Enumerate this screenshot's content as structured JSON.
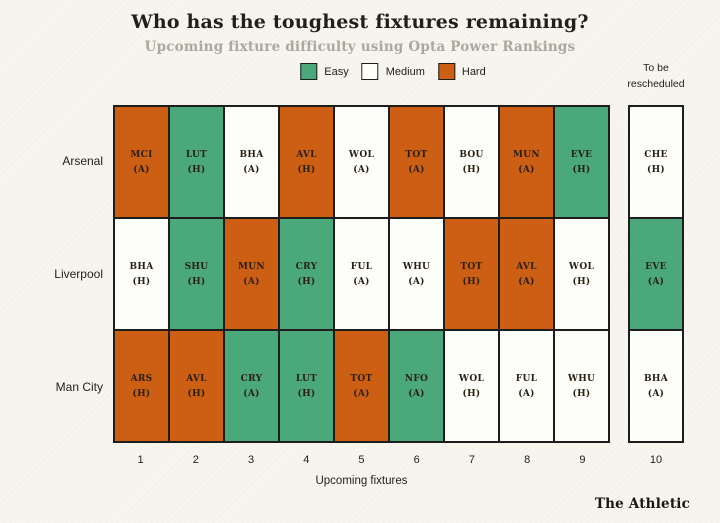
{
  "page": {
    "rescheduled_label_line1": "To be",
    "rescheduled_label_line2": "rescheduled"
  },
  "legend": {
    "items": [
      {
        "label": "Easy",
        "key": "easy"
      },
      {
        "label": "Medium",
        "key": "medium"
      },
      {
        "label": "Hard",
        "key": "hard"
      }
    ]
  },
  "colors": {
    "easy": "#4ba87b",
    "medium": "#fdfdfa",
    "hard": "#cc5f13",
    "border": "#1d1d1b",
    "background": "#f7f5ee",
    "subtitle_text": "#a8a99f",
    "title_text": "#211f1c"
  },
  "branding": "The Athletic",
  "chart_data": {
    "type": "heatmap",
    "title": "Who has the toughest fixtures remaining?",
    "subtitle": "Upcoming fixture difficulty using Opta Power Rankings",
    "xlabel": "Upcoming fixtures",
    "x_ticks": [
      "1",
      "2",
      "3",
      "4",
      "5",
      "6",
      "7",
      "8",
      "9",
      "10"
    ],
    "difficulty_scale": [
      "easy",
      "medium",
      "hard"
    ],
    "legend_entries": [
      "Easy",
      "Medium",
      "Hard"
    ],
    "rescheduled_column_label": "To be rescheduled",
    "rows": [
      {
        "team": "Arsenal",
        "fixtures": [
          {
            "opponent": "MCI",
            "venue": "A",
            "difficulty": "hard"
          },
          {
            "opponent": "LUT",
            "venue": "H",
            "difficulty": "easy"
          },
          {
            "opponent": "BHA",
            "venue": "A",
            "difficulty": "medium"
          },
          {
            "opponent": "AVL",
            "venue": "H",
            "difficulty": "hard"
          },
          {
            "opponent": "WOL",
            "venue": "A",
            "difficulty": "medium"
          },
          {
            "opponent": "TOT",
            "venue": "A",
            "difficulty": "hard"
          },
          {
            "opponent": "BOU",
            "venue": "H",
            "difficulty": "medium"
          },
          {
            "opponent": "MUN",
            "venue": "A",
            "difficulty": "hard"
          },
          {
            "opponent": "EVE",
            "venue": "H",
            "difficulty": "easy"
          }
        ],
        "rescheduled": {
          "opponent": "CHE",
          "venue": "H",
          "difficulty": "medium"
        }
      },
      {
        "team": "Liverpool",
        "fixtures": [
          {
            "opponent": "BHA",
            "venue": "H",
            "difficulty": "medium"
          },
          {
            "opponent": "SHU",
            "venue": "H",
            "difficulty": "easy"
          },
          {
            "opponent": "MUN",
            "venue": "A",
            "difficulty": "hard"
          },
          {
            "opponent": "CRY",
            "venue": "H",
            "difficulty": "easy"
          },
          {
            "opponent": "FUL",
            "venue": "A",
            "difficulty": "medium"
          },
          {
            "opponent": "WHU",
            "venue": "A",
            "difficulty": "medium"
          },
          {
            "opponent": "TOT",
            "venue": "H",
            "difficulty": "hard"
          },
          {
            "opponent": "AVL",
            "venue": "A",
            "difficulty": "hard"
          },
          {
            "opponent": "WOL",
            "venue": "H",
            "difficulty": "medium"
          }
        ],
        "rescheduled": {
          "opponent": "EVE",
          "venue": "A",
          "difficulty": "easy"
        }
      },
      {
        "team": "Man City",
        "fixtures": [
          {
            "opponent": "ARS",
            "venue": "H",
            "difficulty": "hard"
          },
          {
            "opponent": "AVL",
            "venue": "H",
            "difficulty": "hard"
          },
          {
            "opponent": "CRY",
            "venue": "A",
            "difficulty": "easy"
          },
          {
            "opponent": "LUT",
            "venue": "H",
            "difficulty": "easy"
          },
          {
            "opponent": "TOT",
            "venue": "A",
            "difficulty": "hard"
          },
          {
            "opponent": "NFO",
            "venue": "A",
            "difficulty": "easy"
          },
          {
            "opponent": "WOL",
            "venue": "H",
            "difficulty": "medium"
          },
          {
            "opponent": "FUL",
            "venue": "A",
            "difficulty": "medium"
          },
          {
            "opponent": "WHU",
            "venue": "H",
            "difficulty": "medium"
          }
        ],
        "rescheduled": {
          "opponent": "BHA",
          "venue": "A",
          "difficulty": "medium"
        }
      }
    ]
  }
}
